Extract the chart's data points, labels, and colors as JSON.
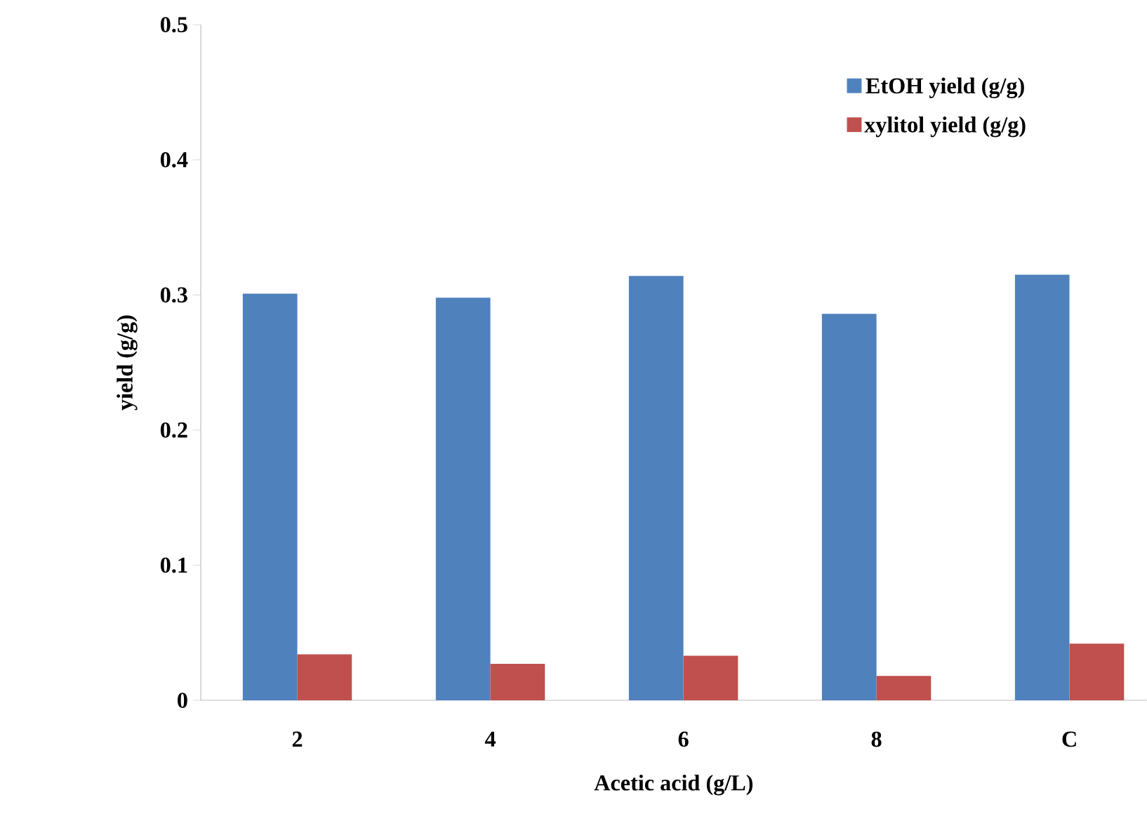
{
  "chart_data": {
    "type": "bar",
    "xlabel": "Acetic acid  (g/L)",
    "ylabel": "yield (g/g)",
    "categories": [
      "2",
      "4",
      "6",
      "8",
      "C"
    ],
    "series": [
      {
        "name": "EtOH yield (g/g)",
        "color": "#4f81bd",
        "values": [
          0.301,
          0.298,
          0.314,
          0.286,
          0.315
        ]
      },
      {
        "name": "xylitol yield (g/g)",
        "color": "#c0504d",
        "values": [
          0.034,
          0.027,
          0.033,
          0.018,
          0.042
        ]
      }
    ],
    "ylim": [
      0,
      0.5
    ],
    "yticks": [
      0,
      0.1,
      0.2,
      0.3,
      0.4,
      0.5
    ],
    "legend": "top right"
  }
}
